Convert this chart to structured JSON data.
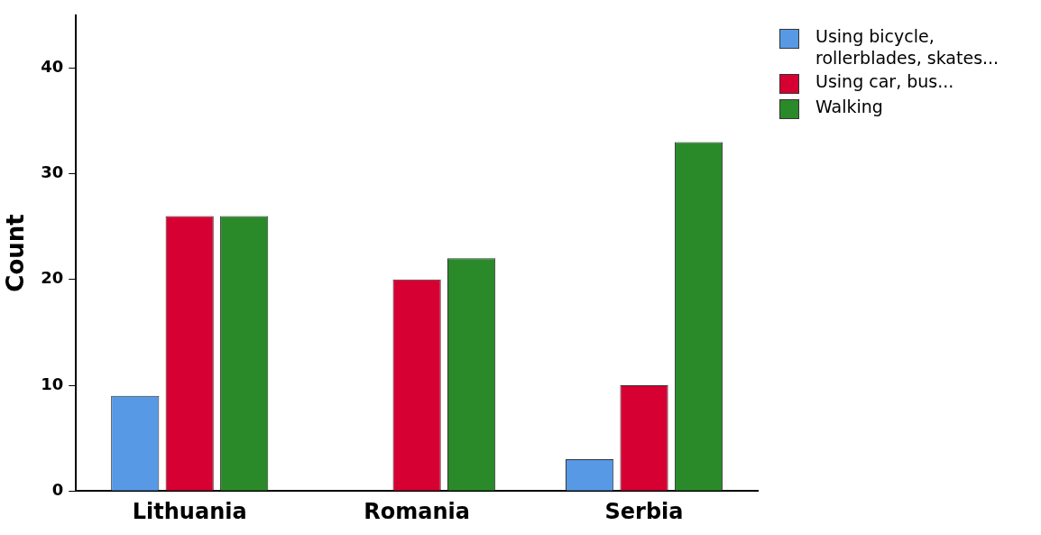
{
  "chart_data": {
    "type": "bar",
    "ylabel": "Count",
    "categories": [
      "Lithuania",
      "Romania",
      "Serbia"
    ],
    "series": [
      {
        "name": "Using bicycle, rollerblades, skates...",
        "color": "#5899e6",
        "values": [
          9,
          0,
          3
        ]
      },
      {
        "name": "Using car, bus...",
        "color": "#d60032",
        "values": [
          26,
          20,
          10
        ]
      },
      {
        "name": "Walking",
        "color": "#2a8a2a",
        "values": [
          26,
          22,
          33
        ]
      }
    ],
    "ylim": [
      0,
      45
    ],
    "yticks": [
      0,
      10,
      20,
      30,
      40
    ],
    "grid": false,
    "legend": "top right"
  }
}
